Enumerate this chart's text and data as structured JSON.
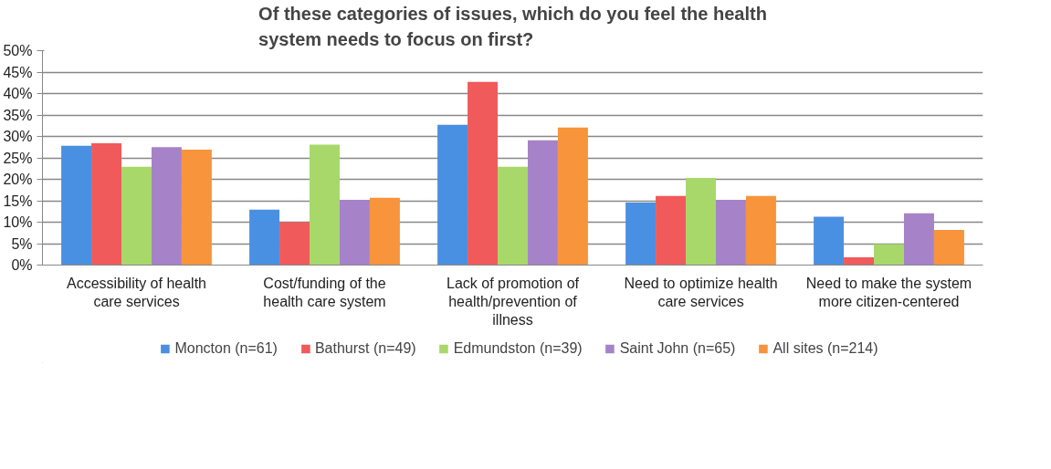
{
  "chart_data": {
    "type": "bar",
    "title": "Of these categories of issues, which do you feel the health system needs to focus on first?",
    "categories": [
      "Accessibility of health care services",
      "Cost/funding of the health care system",
      "Lack of promotion of health/prevention of illness",
      "Need to optimize health care services",
      "Need to make the system more citizen-centered"
    ],
    "series": [
      {
        "name": "Moncton (n=61)",
        "color": "#4a90e2",
        "values": [
          27.8,
          12.9,
          32.7,
          14.6,
          11.3
        ]
      },
      {
        "name": "Bathurst (n=49)",
        "color": "#f05a5a",
        "values": [
          28.4,
          10.0,
          42.7,
          16.1,
          1.8
        ]
      },
      {
        "name": "Edmundston (n=39)",
        "color": "#a8d86a",
        "values": [
          22.9,
          28.1,
          22.9,
          20.3,
          4.9
        ]
      },
      {
        "name": "Saint John (n=65)",
        "color": "#a683c8",
        "values": [
          27.5,
          15.2,
          29.1,
          15.2,
          12.1
        ]
      },
      {
        "name": "All sites (n=214)",
        "color": "#f7943c",
        "values": [
          26.9,
          15.7,
          32.1,
          16.1,
          8.2
        ]
      }
    ],
    "ylim": [
      0,
      50
    ],
    "yticks": [
      {
        "value": 0,
        "label": "0%"
      },
      {
        "value": 5,
        "label": "5%"
      },
      {
        "value": 10,
        "label": "10%"
      },
      {
        "value": 15,
        "label": "15%"
      },
      {
        "value": 20,
        "label": "20%"
      },
      {
        "value": 25,
        "label": "25%"
      },
      {
        "value": 30,
        "label": "30%"
      },
      {
        "value": 35,
        "label": "35%"
      },
      {
        "value": 40,
        "label": "40%"
      },
      {
        "value": 45,
        "label": "45%"
      },
      {
        "value": 50,
        "label": "50%"
      }
    ],
    "grid": "y",
    "legend": "bottom"
  }
}
